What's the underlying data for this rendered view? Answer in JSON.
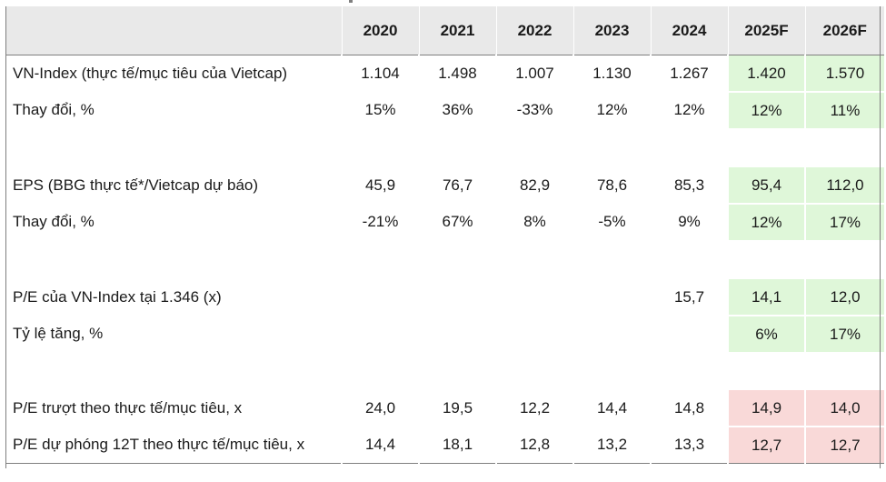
{
  "header": {
    "label": "",
    "years": [
      "2020",
      "2021",
      "2022",
      "2023",
      "2024",
      "2025F",
      "2026F"
    ]
  },
  "rows": [
    {
      "label": "VN-Index (thực tế/mục tiêu của Vietcap)",
      "values": [
        "1.104",
        "1.498",
        "1.007",
        "1.130",
        "1.267",
        "1.420",
        "1.570"
      ],
      "highlight": "green"
    },
    {
      "label": "Thay đổi, %",
      "values": [
        "15%",
        "36%",
        "-33%",
        "12%",
        "12%",
        "12%",
        "11%"
      ],
      "highlight": "green"
    },
    {
      "spacer": true
    },
    {
      "label": "EPS (BBG thực tế*/Vietcap dự báo)",
      "values": [
        "45,9",
        "76,7",
        "82,9",
        "78,6",
        "85,3",
        "95,4",
        "112,0"
      ],
      "highlight": "green"
    },
    {
      "label": "Thay đổi, %",
      "values": [
        "-21%",
        "67%",
        "8%",
        "-5%",
        "9%",
        "12%",
        "17%"
      ],
      "highlight": "green"
    },
    {
      "spacer": true
    },
    {
      "label": "P/E của VN-Index tại 1.346 (x)",
      "values": [
        "",
        "",
        "",
        "",
        "15,7",
        "14,1",
        "12,0"
      ],
      "highlight": "green"
    },
    {
      "label": "Tỷ lệ tăng, %",
      "values": [
        "",
        "",
        "",
        "",
        "",
        "6%",
        "17%"
      ],
      "highlight": "green"
    },
    {
      "spacer": true
    },
    {
      "label": "P/E trượt theo thực tế/mục tiêu, x",
      "values": [
        "24,0",
        "19,5",
        "12,2",
        "14,4",
        "14,8",
        "14,9",
        "14,0"
      ],
      "highlight": "red"
    },
    {
      "label": "P/E dự phóng 12T theo thực tế/mục tiêu, x",
      "values": [
        "14,4",
        "18,1",
        "12,8",
        "13,2",
        "13,3",
        "12,7",
        "12,7"
      ],
      "highlight": "red"
    }
  ],
  "colors": {
    "header_bg": "#e9e9e9",
    "forecast_green": "#dff7d9",
    "forecast_red": "#f9d9d8"
  }
}
